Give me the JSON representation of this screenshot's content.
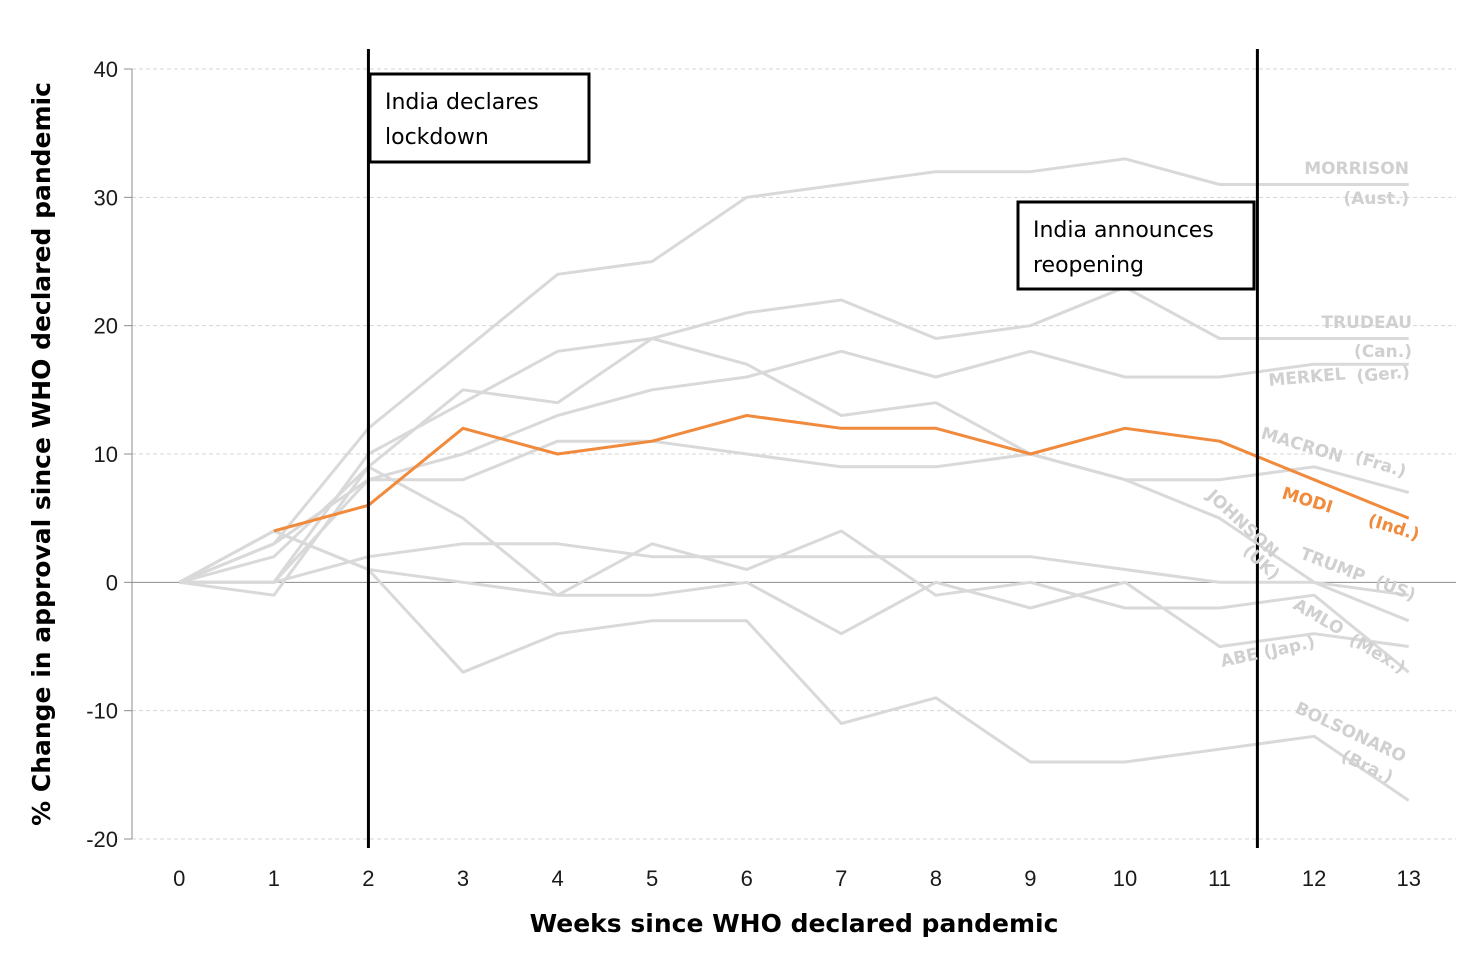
{
  "chart_data": {
    "type": "line",
    "title": "",
    "xlabel": "Weeks since WHO declared pandemic",
    "ylabel": "% Change in approval since WHO declared pandemic",
    "x": [
      0,
      1,
      2,
      3,
      4,
      5,
      6,
      7,
      8,
      9,
      10,
      11,
      12,
      13
    ],
    "xlim": [
      -0.5,
      13.5
    ],
    "ylim": [
      -20,
      40
    ],
    "yticks": [
      -20,
      -10,
      0,
      10,
      20,
      30,
      40
    ],
    "grid": true,
    "legend": "none (series labelled at line ends)",
    "colors": {
      "highlight": "#F08A3C",
      "context": "#D9D9D9",
      "label_context": "#D0D0D0",
      "markers": "#000000",
      "grid": "#D6D6D6"
    },
    "series": [
      {
        "name": "MORRISON",
        "sub": "(Aust.)",
        "highlight": false,
        "values": [
          0,
          3,
          12,
          18,
          24,
          25,
          30,
          31,
          32,
          32,
          33,
          31,
          31,
          31
        ]
      },
      {
        "name": "TRUDEAU",
        "sub": "(Can.)",
        "highlight": false,
        "values": [
          0,
          0,
          10,
          14,
          18,
          19,
          21,
          22,
          19,
          20,
          23,
          19,
          19,
          19
        ]
      },
      {
        "name": "MERKEL",
        "sub": "(Ger.)",
        "highlight": false,
        "values": [
          0,
          0,
          8,
          10,
          13,
          15,
          16,
          18,
          16,
          18,
          16,
          16,
          17,
          17
        ]
      },
      {
        "name": "MACRON",
        "sub": "(Fra.)",
        "highlight": false,
        "values": [
          0,
          2,
          9,
          15,
          14,
          19,
          17,
          13,
          14,
          10,
          8,
          8,
          9,
          7
        ]
      },
      {
        "name": "JOHNSON",
        "sub": "(UK)",
        "highlight": false,
        "values": [
          0,
          3,
          8,
          8,
          11,
          11,
          10,
          9,
          9,
          10,
          8,
          5,
          0,
          -3
        ]
      },
      {
        "name": "TRUMP",
        "sub": "(US)",
        "highlight": false,
        "values": [
          0,
          0,
          2,
          3,
          3,
          2,
          2,
          2,
          2,
          2,
          1,
          0,
          0,
          -1
        ]
      },
      {
        "name": "AMLO",
        "sub": "(Mex.)",
        "highlight": false,
        "values": [
          0,
          -1,
          9,
          5,
          -1,
          3,
          1,
          4,
          -1,
          0,
          -2,
          -2,
          -1,
          -7
        ]
      },
      {
        "name": "ABE",
        "sub": "(Jap.)",
        "highlight": false,
        "values": [
          0,
          4,
          1,
          0,
          -1,
          -1,
          0,
          -4,
          0,
          -2,
          0,
          -5,
          -4,
          -5
        ]
      },
      {
        "name": "BOLSONARO",
        "sub": "(Bra.)",
        "highlight": false,
        "values": [
          0,
          4,
          1,
          -7,
          -4,
          -3,
          -3,
          -11,
          -9,
          -14,
          -14,
          -13,
          -12,
          -17
        ]
      },
      {
        "name": "MODI",
        "sub": "(Ind.)",
        "highlight": true,
        "values": [
          null,
          4,
          6,
          12,
          10,
          11,
          13,
          12,
          12,
          10,
          12,
          11,
          8,
          5
        ]
      }
    ],
    "annotations": [
      {
        "x": 2,
        "text_line1": "India declares",
        "text_line2": "lockdown"
      },
      {
        "x": 11.4,
        "text_line1": "India announces",
        "text_line2": "reopening"
      }
    ]
  }
}
